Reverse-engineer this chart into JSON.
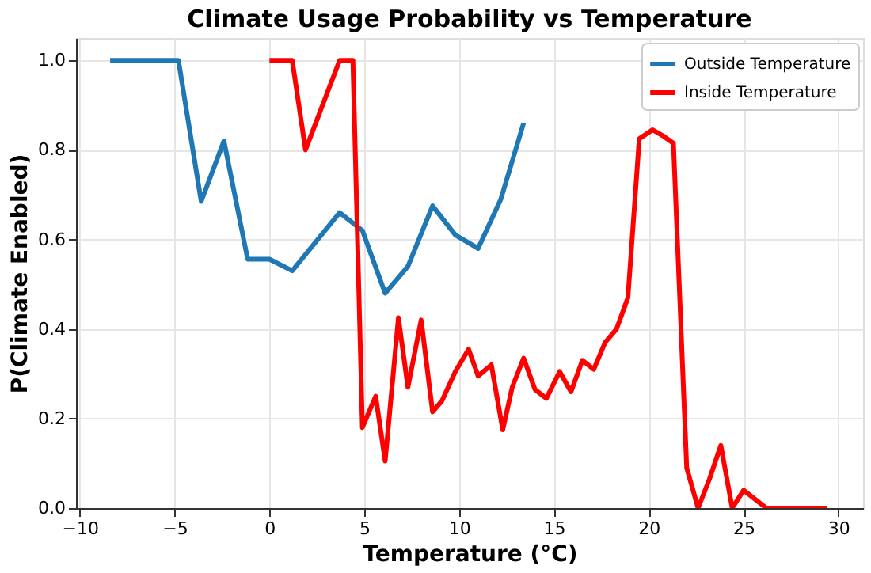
{
  "chart_data": {
    "type": "line",
    "title": "Climate Usage Probability vs Temperature",
    "xlabel": "Temperature (°C)",
    "ylabel": "P(Climate Enabled)",
    "xlim": [
      -10.2,
      31.3
    ],
    "xticks": [
      -10,
      -5,
      0,
      5,
      10,
      15,
      20,
      25,
      30
    ],
    "ylim": [
      0,
      1.05
    ],
    "yticks": [
      {
        "value": 0,
        "label": "0.0"
      },
      0.2,
      0.4,
      0.6,
      0.8,
      {
        "value": 1,
        "label": "1.0"
      }
    ],
    "grid": true,
    "legend": "top right",
    "line_style": "solid",
    "marker": "none",
    "series": [
      {
        "name": "Outside Temperature",
        "color": "#1f77b4",
        "x": [
          -8.4,
          -4.8,
          -3.6,
          -2.4,
          -1.15,
          0,
          1.2,
          3.7,
          4.9,
          6.1,
          7.3,
          8.6,
          9.8,
          11,
          12.2,
          13.4
        ],
        "values": [
          1.0,
          1.0,
          0.685,
          0.82,
          0.556,
          0.556,
          0.53,
          0.66,
          0.62,
          0.48,
          0.54,
          0.675,
          0.61,
          0.58,
          0.69,
          0.86
        ]
      },
      {
        "name": "Inside Temperature",
        "color": "#ff0000",
        "x": [
          0,
          1.2,
          1.9,
          3.7,
          4.4,
          4.9,
          5.6,
          6.1,
          6.8,
          7.3,
          8.0,
          8.6,
          9.1,
          9.8,
          10.5,
          11.0,
          11.7,
          12.3,
          12.8,
          13.4,
          14.0,
          14.6,
          15.3,
          15.9,
          16.5,
          17.1,
          17.7,
          18.3,
          18.9,
          19.5,
          20.2,
          20.8,
          21.3,
          22.0,
          22.6,
          23.2,
          23.8,
          24.4,
          25.0,
          26.2,
          29.4
        ],
        "values": [
          1.0,
          1.0,
          0.8,
          1.0,
          1.0,
          0.18,
          0.25,
          0.105,
          0.425,
          0.27,
          0.42,
          0.215,
          0.24,
          0.305,
          0.355,
          0.295,
          0.32,
          0.175,
          0.27,
          0.335,
          0.265,
          0.245,
          0.305,
          0.26,
          0.33,
          0.31,
          0.37,
          0.4,
          0.47,
          0.825,
          0.845,
          0.83,
          0.815,
          0.09,
          0,
          0.065,
          0.14,
          0,
          0.04,
          0,
          0
        ]
      }
    ]
  }
}
